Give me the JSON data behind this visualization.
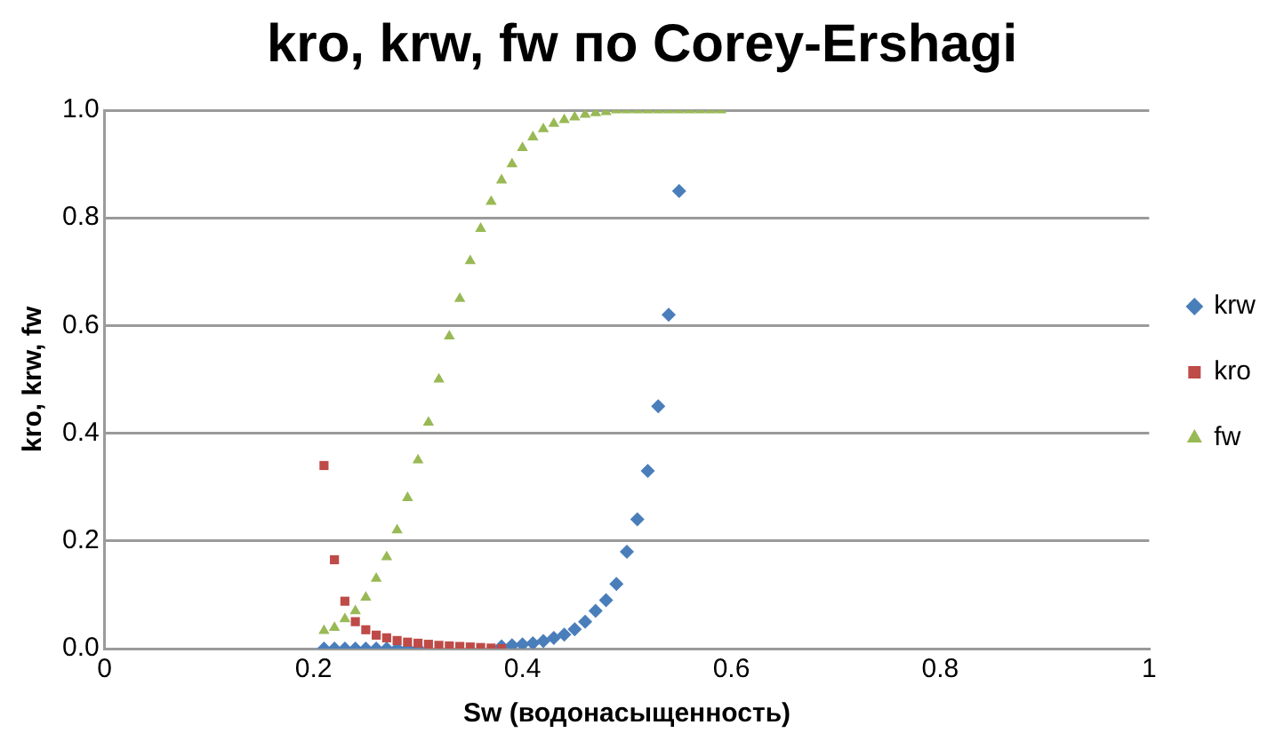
{
  "chart_data": {
    "type": "scatter",
    "title": "kro, krw, fw по Corey-Ershagi",
    "xlabel": "Sw (водонасыщенность)",
    "ylabel": "kro, krw, fw",
    "xlim": [
      0,
      1
    ],
    "xticks": [
      0,
      0.2,
      0.4,
      0.6,
      0.8,
      1
    ],
    "ylim": [
      0,
      1
    ],
    "yticks": [
      {
        "value": 0,
        "label": "0.0"
      },
      {
        "value": 0.2,
        "label": "0.2"
      },
      {
        "value": 0.4,
        "label": "0.4"
      },
      {
        "value": 0.6,
        "label": "0.6"
      },
      {
        "value": 0.8,
        "label": "0.8"
      },
      {
        "value": 1,
        "label": "1.0"
      }
    ],
    "grid": "y",
    "legend": "right",
    "series": [
      {
        "name": "krw",
        "color": "#4a7ebb",
        "marker": "diamond",
        "x": [
          0.21,
          0.22,
          0.23,
          0.24,
          0.25,
          0.26,
          0.27,
          0.28,
          0.29,
          0.3,
          0.34,
          0.35,
          0.36,
          0.37,
          0.38,
          0.39,
          0.4,
          0.41,
          0.42,
          0.43,
          0.44,
          0.45,
          0.46,
          0.47,
          0.48,
          0.49,
          0.5,
          0.51,
          0.52,
          0.53,
          0.54,
          0.55
        ],
        "values": [
          0,
          0,
          0,
          0,
          0,
          0,
          0,
          0,
          0,
          0,
          null,
          null,
          null,
          null,
          0.004,
          0.006,
          0.008,
          0.01,
          0.014,
          0.02,
          0.026,
          0.036,
          0.05,
          0.07,
          0.09,
          0.12,
          0.18,
          0.24,
          0.33,
          0.45,
          0.62,
          0.85
        ]
      },
      {
        "name": "kro",
        "color": "#be4b48",
        "marker": "square",
        "x": [
          0.21,
          0.22,
          0.23,
          0.24,
          0.25,
          0.26,
          0.27,
          0.28,
          0.29,
          0.3,
          0.31,
          0.32,
          0.33,
          0.34,
          0.35,
          0.36,
          0.37,
          0.38
        ],
        "values": [
          0.34,
          0.165,
          0.088,
          0.05,
          0.035,
          0.025,
          0.02,
          0.015,
          0.012,
          0.01,
          0.008,
          0.006,
          0.005,
          0.004,
          0.003,
          0.002,
          0.001,
          0
        ]
      },
      {
        "name": "fw",
        "color": "#98b954",
        "marker": "triangle",
        "x": [
          0.21,
          0.22,
          0.23,
          0.24,
          0.25,
          0.26,
          0.27,
          0.28,
          0.29,
          0.3,
          0.31,
          0.32,
          0.33,
          0.34,
          0.35,
          0.36,
          0.37,
          0.38,
          0.39,
          0.4,
          0.41,
          0.42,
          0.43,
          0.44,
          0.45,
          0.46,
          0.47,
          0.48,
          0.49,
          0.5,
          0.51,
          0.52,
          0.53,
          0.54,
          0.55,
          0.56,
          0.57,
          0.58,
          0.59
        ],
        "values": [
          0.033,
          0.039,
          0.055,
          0.07,
          0.095,
          0.13,
          0.17,
          0.22,
          0.28,
          0.35,
          0.42,
          0.5,
          0.58,
          0.65,
          0.72,
          0.78,
          0.83,
          0.87,
          0.9,
          0.93,
          0.95,
          0.965,
          0.975,
          0.982,
          0.987,
          0.992,
          0.995,
          0.997,
          1,
          1,
          1,
          1,
          1,
          1,
          1,
          1,
          1,
          1,
          1
        ]
      }
    ]
  }
}
